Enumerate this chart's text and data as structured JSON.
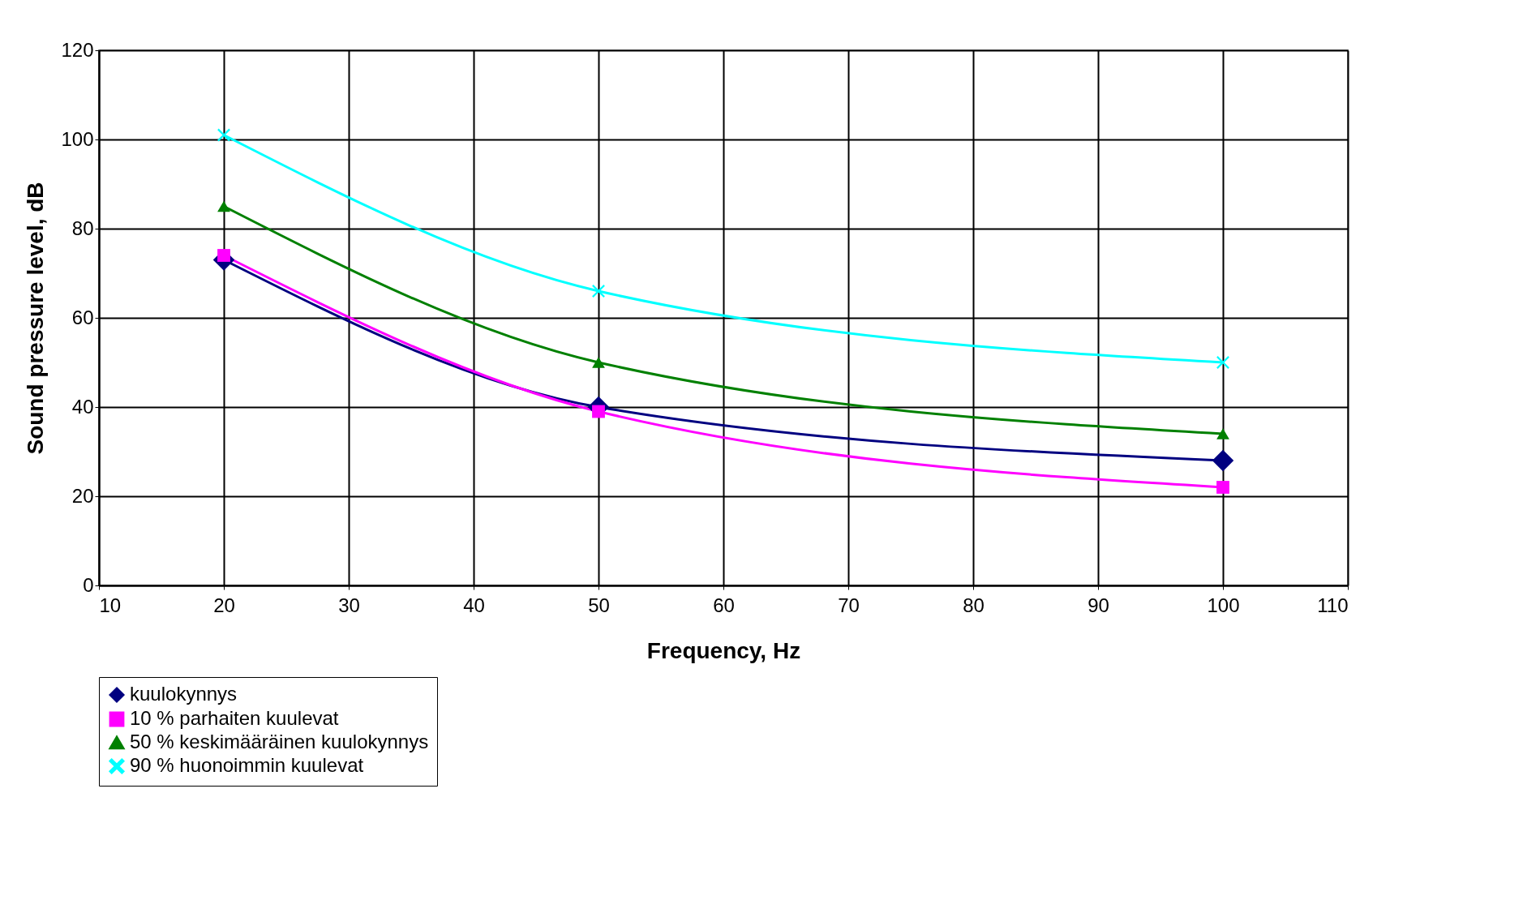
{
  "chart_data": {
    "type": "line",
    "xlabel": "Frequency, Hz",
    "ylabel": "Sound pressure level, dB",
    "x": [
      20,
      50,
      100
    ],
    "series": [
      {
        "name": "kuulokynnys",
        "color": "#000080",
        "marker": "diamond",
        "values": [
          73,
          40,
          28
        ]
      },
      {
        "name": "10 % parhaiten kuulevat",
        "color": "#ff00ff",
        "marker": "square",
        "values": [
          74,
          39,
          22
        ]
      },
      {
        "name": "50 % keskimääräinen kuulokynnys",
        "color": "#008000",
        "marker": "triangle",
        "values": [
          85,
          50,
          34
        ]
      },
      {
        "name": "90 % huonoimmin kuulevat",
        "color": "#00ffff",
        "marker": "cross",
        "values": [
          101,
          66,
          50
        ]
      }
    ],
    "xlim": [
      10,
      110
    ],
    "xticks": [
      10,
      20,
      30,
      40,
      50,
      60,
      70,
      80,
      90,
      100,
      110
    ],
    "ylim": [
      0,
      120
    ],
    "yticks": [
      0,
      20,
      40,
      60,
      80,
      100,
      120
    ],
    "grid": true,
    "legend": "bottom",
    "line_style": "solid"
  }
}
